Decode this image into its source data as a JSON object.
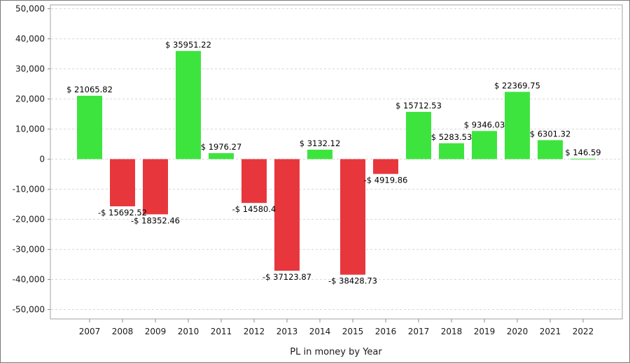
{
  "chart_data": {
    "type": "bar",
    "title": "",
    "xlabel": "PL in money by Year",
    "ylabel": "",
    "ylim": [
      -55000,
      50000
    ],
    "yticks": [
      50000,
      40000,
      30000,
      20000,
      10000,
      0,
      -10000,
      -20000,
      -30000,
      -40000,
      -50000
    ],
    "ytick_labels": [
      "50,000",
      "40,000",
      "30,000",
      "20,000",
      "10,000",
      "0",
      "-10,000",
      "-20,000",
      "-30,000",
      "-40,000",
      "-50,000"
    ],
    "grid": true,
    "categories": [
      "2007",
      "2008",
      "2009",
      "2010",
      "2011",
      "2012",
      "2013",
      "2014",
      "2015",
      "2016",
      "2017",
      "2018",
      "2019",
      "2020",
      "2021",
      "2022"
    ],
    "values": [
      21065.82,
      -15692.52,
      -18352.46,
      35951.22,
      1976.27,
      -14580.4,
      -37123.87,
      3132.12,
      -38428.73,
      -4919.86,
      15712.53,
      5283.53,
      9346.03,
      22369.75,
      6301.32,
      146.59
    ],
    "data_labels": [
      "$ 21065.82",
      "-$ 15692.52",
      "-$ 18352.46",
      "$ 35951.22",
      "$ 1976.27",
      "-$ 14580.4",
      "-$ 37123.87",
      "$ 3132.12",
      "-$ 38428.73",
      "-$ 4919.86",
      "$ 15712.53",
      "$ 5283.53",
      "$ 9346.03",
      "$ 22369.75",
      "$ 6301.32",
      "$ 146.59"
    ],
    "colors": {
      "positive": "#3ee43e",
      "negative": "#e8373c",
      "grid": "#d7d7d7",
      "axis": "#8c8c8c"
    }
  }
}
